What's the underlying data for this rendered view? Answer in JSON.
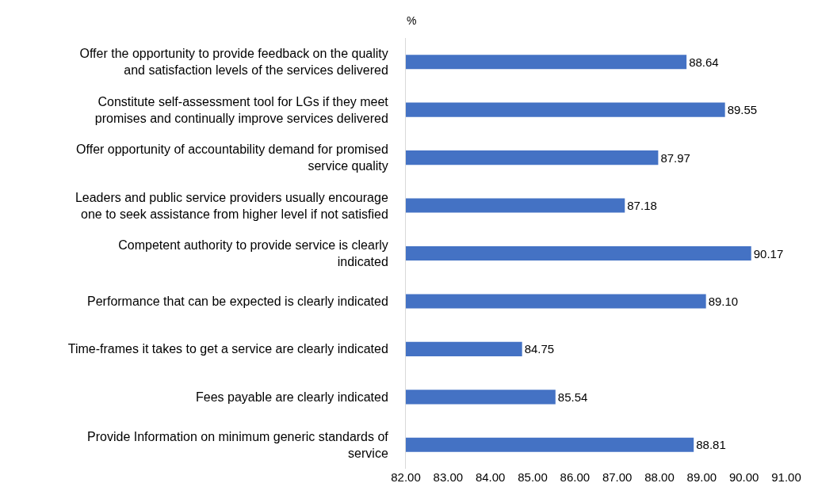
{
  "chart_data": {
    "type": "bar",
    "orientation": "horizontal",
    "xlabel": "%",
    "categories": [
      "Offer the opportunity to provide feedback on the quality\nand satisfaction levels of the services delivered",
      "Constitute self-assessment tool for LGs if they meet\npromises and continually improve services delivered",
      "Offer opportunity of accountability demand for promised\nservice quality",
      "Leaders and public service providers usually encourage\none to seek assistance from higher level if not satisfied",
      "Competent authority to provide service is clearly\nindicated",
      "Performance that can be expected is clearly indicated",
      "Time-frames it takes to get a service are clearly indicated",
      "Fees payable are clearly indicated",
      "Provide Information on minimum generic standards of\nservice"
    ],
    "values": [
      88.64,
      89.55,
      87.97,
      87.18,
      90.17,
      89.1,
      84.75,
      85.54,
      88.81
    ],
    "value_labels": [
      "88.64",
      "89.55",
      "87.97",
      "87.18",
      "90.17",
      "89.10",
      "84.75",
      "85.54",
      "88.81"
    ],
    "color": "#4472c4",
    "xlim": [
      82,
      91
    ],
    "xticks": [
      {
        "value": 82,
        "label": "82.00"
      },
      {
        "value": 83,
        "label": "83.00"
      },
      {
        "value": 84,
        "label": "84.00"
      },
      {
        "value": 85,
        "label": "85.00"
      },
      {
        "value": 86,
        "label": "86.00"
      },
      {
        "value": 87,
        "label": "87.00"
      },
      {
        "value": 88,
        "label": "88.00"
      },
      {
        "value": 89,
        "label": "89.00"
      },
      {
        "value": 90,
        "label": "90.00"
      },
      {
        "value": 91,
        "label": "91.00"
      }
    ],
    "grid": false
  }
}
